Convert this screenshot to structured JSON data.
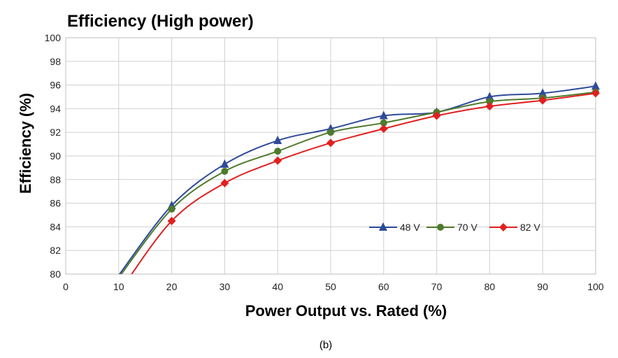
{
  "caption": "(b)",
  "chart_data": {
    "type": "line",
    "title": "Efficiency (High power)",
    "xlabel": "Power Output vs. Rated (%)",
    "ylabel": "Efficiency (%)",
    "xlim": [
      0,
      100
    ],
    "ylim": [
      80,
      100
    ],
    "xticks": [
      0,
      10,
      20,
      30,
      40,
      50,
      60,
      70,
      80,
      90,
      100
    ],
    "yticks": [
      80,
      82,
      84,
      86,
      88,
      90,
      92,
      94,
      96,
      98,
      100
    ],
    "grid": true,
    "legend_position": "lower-right",
    "x": [
      10,
      20,
      30,
      40,
      50,
      60,
      70,
      80,
      90,
      100
    ],
    "series": [
      {
        "name": "48 V",
        "color": "#2e4a9a",
        "marker": "triangle",
        "values": [
          79.9,
          85.8,
          89.3,
          91.3,
          92.3,
          93.4,
          93.7,
          95.0,
          95.3,
          95.9
        ]
      },
      {
        "name": "70 V",
        "color": "#4e7b2c",
        "marker": "circle",
        "values": [
          79.7,
          85.5,
          88.7,
          90.4,
          92.0,
          92.8,
          93.7,
          94.6,
          94.9,
          95.4
        ]
      },
      {
        "name": "82 V",
        "color": "#e02020",
        "marker": "diamond",
        "values": [
          78.4,
          84.5,
          87.7,
          89.6,
          91.1,
          92.3,
          93.4,
          94.2,
          94.7,
          95.3
        ]
      }
    ]
  }
}
